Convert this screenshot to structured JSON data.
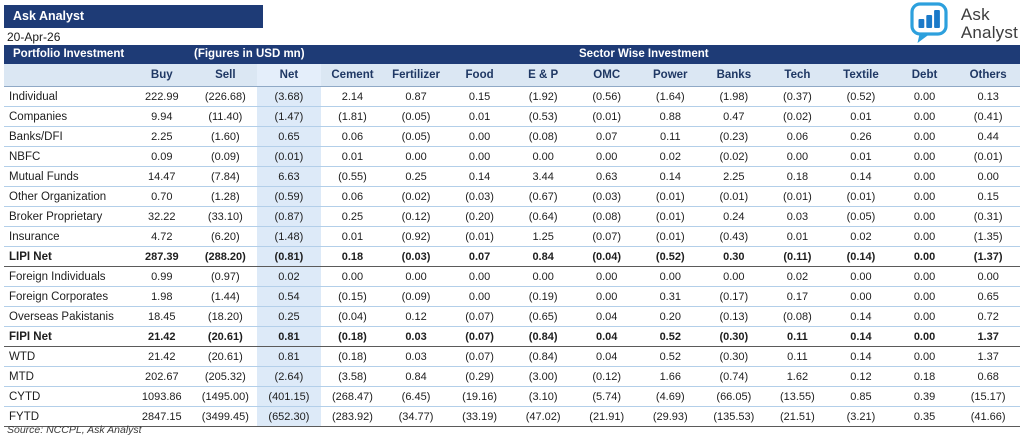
{
  "header": {
    "brand_bar": "Ask Analyst",
    "date": "20-Apr-26",
    "logo": {
      "icon": "bar-chart-speech-bubble-icon",
      "line1": "Ask",
      "line2": "Analyst"
    },
    "section_bar": {
      "left": "Portfolio Investment",
      "center": "(Figures in USD mn)",
      "right": "Sector Wise Investment"
    }
  },
  "table": {
    "columns": [
      "",
      "Buy",
      "Sell",
      "Net",
      "Cement",
      "Fertilizer",
      "Food",
      "E & P",
      "OMC",
      "Power",
      "Banks",
      "Tech",
      "Textile",
      "Debt",
      "Others"
    ],
    "net_column_index": 3,
    "rows": [
      {
        "label": "Individual",
        "bold": false,
        "values": [
          "222.99",
          "(226.68)",
          "(3.68)",
          "2.14",
          "0.87",
          "0.15",
          "(1.92)",
          "(0.56)",
          "(1.64)",
          "(1.98)",
          "(0.37)",
          "(0.52)",
          "0.00",
          "0.13"
        ]
      },
      {
        "label": "Companies",
        "bold": false,
        "values": [
          "9.94",
          "(11.40)",
          "(1.47)",
          "(1.81)",
          "(0.05)",
          "0.01",
          "(0.53)",
          "(0.01)",
          "0.88",
          "0.47",
          "(0.02)",
          "0.01",
          "0.00",
          "(0.41)"
        ]
      },
      {
        "label": "Banks/DFI",
        "bold": false,
        "values": [
          "2.25",
          "(1.60)",
          "0.65",
          "0.06",
          "(0.05)",
          "0.00",
          "(0.08)",
          "0.07",
          "0.11",
          "(0.23)",
          "0.06",
          "0.26",
          "0.00",
          "0.44"
        ]
      },
      {
        "label": "NBFC",
        "bold": false,
        "values": [
          "0.09",
          "(0.09)",
          "(0.01)",
          "0.01",
          "0.00",
          "0.00",
          "0.00",
          "0.00",
          "0.02",
          "(0.02)",
          "0.00",
          "0.01",
          "0.00",
          "(0.01)"
        ]
      },
      {
        "label": "Mutual Funds",
        "bold": false,
        "values": [
          "14.47",
          "(7.84)",
          "6.63",
          "(0.55)",
          "0.25",
          "0.14",
          "3.44",
          "0.63",
          "0.14",
          "2.25",
          "0.18",
          "0.14",
          "0.00",
          "0.00"
        ]
      },
      {
        "label": "Other Organization",
        "bold": false,
        "values": [
          "0.70",
          "(1.28)",
          "(0.59)",
          "0.06",
          "(0.02)",
          "(0.03)",
          "(0.67)",
          "(0.03)",
          "(0.01)",
          "(0.01)",
          "(0.01)",
          "(0.01)",
          "0.00",
          "0.15"
        ]
      },
      {
        "label": "Broker Proprietary",
        "bold": false,
        "values": [
          "32.22",
          "(33.10)",
          "(0.87)",
          "0.25",
          "(0.12)",
          "(0.20)",
          "(0.64)",
          "(0.08)",
          "(0.01)",
          "0.24",
          "0.03",
          "(0.05)",
          "0.00",
          "(0.31)"
        ]
      },
      {
        "label": "Insurance",
        "bold": false,
        "values": [
          "4.72",
          "(6.20)",
          "(1.48)",
          "0.01",
          "(0.92)",
          "(0.01)",
          "1.25",
          "(0.07)",
          "(0.01)",
          "(0.43)",
          "0.01",
          "0.02",
          "0.00",
          "(1.35)"
        ]
      },
      {
        "label": "LIPI Net",
        "bold": true,
        "values": [
          "287.39",
          "(288.20)",
          "(0.81)",
          "0.18",
          "(0.03)",
          "0.07",
          "0.84",
          "(0.04)",
          "(0.52)",
          "0.30",
          "(0.11)",
          "(0.14)",
          "0.00",
          "(1.37)"
        ]
      },
      {
        "label": "Foreign Individuals",
        "bold": false,
        "values": [
          "0.99",
          "(0.97)",
          "0.02",
          "0.00",
          "0.00",
          "0.00",
          "0.00",
          "0.00",
          "0.00",
          "0.00",
          "0.02",
          "0.00",
          "0.00",
          "0.00"
        ]
      },
      {
        "label": "Foreign Corporates",
        "bold": false,
        "values": [
          "1.98",
          "(1.44)",
          "0.54",
          "(0.15)",
          "(0.09)",
          "0.00",
          "(0.19)",
          "0.00",
          "0.31",
          "(0.17)",
          "0.17",
          "0.00",
          "0.00",
          "0.65"
        ]
      },
      {
        "label": "Overseas Pakistanis",
        "bold": false,
        "values": [
          "18.45",
          "(18.20)",
          "0.25",
          "(0.04)",
          "0.12",
          "(0.07)",
          "(0.65)",
          "0.04",
          "0.20",
          "(0.13)",
          "(0.08)",
          "0.14",
          "0.00",
          "0.72"
        ]
      },
      {
        "label": "FIPI Net",
        "bold": true,
        "values": [
          "21.42",
          "(20.61)",
          "0.81",
          "(0.18)",
          "0.03",
          "(0.07)",
          "(0.84)",
          "0.04",
          "0.52",
          "(0.30)",
          "0.11",
          "0.14",
          "0.00",
          "1.37"
        ]
      },
      {
        "label": "WTD",
        "bold": false,
        "values": [
          "21.42",
          "(20.61)",
          "0.81",
          "(0.18)",
          "0.03",
          "(0.07)",
          "(0.84)",
          "0.04",
          "0.52",
          "(0.30)",
          "0.11",
          "0.14",
          "0.00",
          "1.37"
        ]
      },
      {
        "label": "MTD",
        "bold": false,
        "values": [
          "202.67",
          "(205.32)",
          "(2.64)",
          "(3.58)",
          "0.84",
          "(0.29)",
          "(3.00)",
          "(0.12)",
          "1.66",
          "(0.74)",
          "1.62",
          "0.12",
          "0.18",
          "0.68"
        ]
      },
      {
        "label": "CYTD",
        "bold": false,
        "values": [
          "1093.86",
          "(1495.00)",
          "(401.15)",
          "(268.47)",
          "(6.45)",
          "(19.16)",
          "(3.10)",
          "(5.74)",
          "(4.69)",
          "(66.05)",
          "(13.55)",
          "0.85",
          "0.39",
          "(15.17)"
        ]
      },
      {
        "label": "FYTD",
        "bold": false,
        "values": [
          "2847.15",
          "(3499.45)",
          "(652.30)",
          "(283.92)",
          "(34.77)",
          "(33.19)",
          "(47.02)",
          "(21.91)",
          "(29.93)",
          "(135.53)",
          "(21.51)",
          "(3.21)",
          "0.35",
          "(41.66)"
        ]
      }
    ]
  },
  "footer": {
    "source": "Source: NCCPL, Ask Analyst"
  },
  "colors": {
    "navy": "#1e3b76",
    "header_row_bg": "#dbe7f3",
    "net_column_bg": "#ddeaf8",
    "row_separator": "#b3cfe9",
    "total_border": "#5a5a5a",
    "logo_outline_blue": "#2da0dd",
    "logo_bar_blue": "#1b7ac9"
  }
}
